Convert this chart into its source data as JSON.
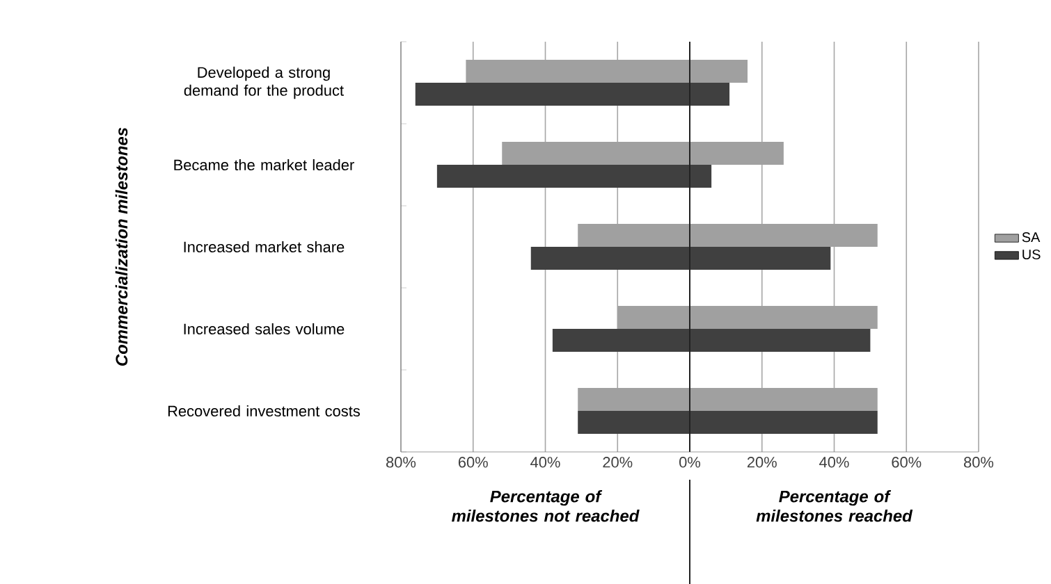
{
  "chart_data": {
    "type": "bar",
    "orientation": "horizontal",
    "ylabel": "Commercialization milestones",
    "categories": [
      "Developed a strong demand for the product",
      "Became the market leader",
      "Increased market share",
      "Increased sales volume",
      "Recovered investment costs"
    ],
    "series": [
      {
        "name": "SA",
        "color": "#a0a0a0",
        "base": [
          -62,
          -52,
          -31,
          -20,
          -31
        ],
        "values": [
          78,
          78,
          83,
          72,
          83
        ]
      },
      {
        "name": "US",
        "color": "#404040",
        "base": [
          -76,
          -70,
          -44,
          -38,
          -31
        ],
        "values": [
          87,
          76,
          83,
          88,
          83
        ]
      }
    ],
    "xlim": [
      -80,
      80
    ],
    "xticks": [
      {
        "value": -80,
        "label": "80%"
      },
      {
        "value": -60,
        "label": "60%"
      },
      {
        "value": -40,
        "label": "40%"
      },
      {
        "value": -20,
        "label": "20%"
      },
      {
        "value": 0,
        "label": "0%"
      },
      {
        "value": 20,
        "label": "20%"
      },
      {
        "value": 40,
        "label": "40%"
      },
      {
        "value": 60,
        "label": "60%"
      },
      {
        "value": 80,
        "label": "80%"
      }
    ],
    "ref_lines": [
      {
        "axis": "x",
        "value": 0,
        "color": "#222222"
      }
    ],
    "annotations": [
      "Percentage of milestones not reached",
      "Percentage of milestones reached"
    ],
    "grid": "x",
    "legend": "right"
  }
}
